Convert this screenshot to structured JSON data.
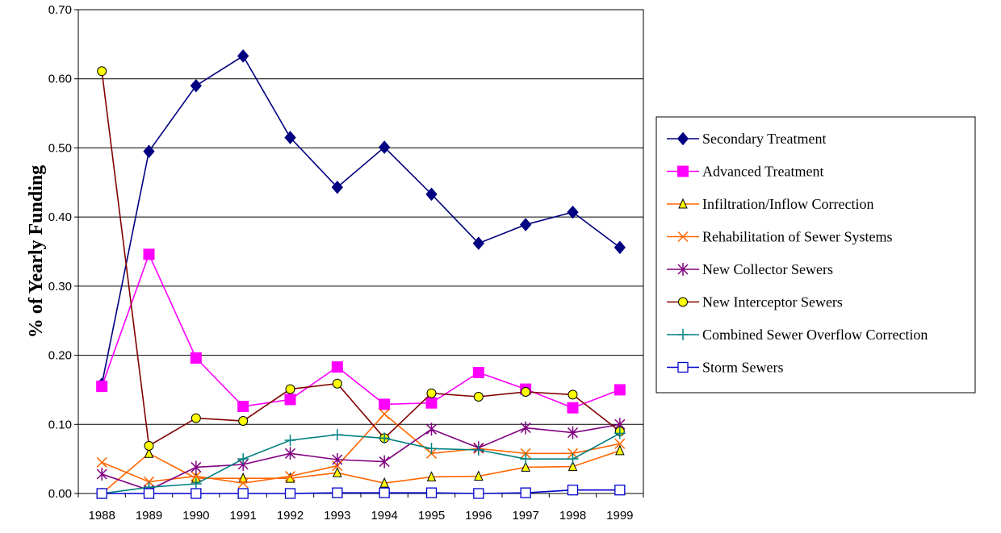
{
  "chart_data": {
    "type": "line",
    "title": "",
    "xlabel": "",
    "ylabel": "% of Yearly Funding",
    "ylim": [
      0,
      0.7
    ],
    "y_ticks": [
      "0.00",
      "0.10",
      "0.20",
      "0.30",
      "0.40",
      "0.50",
      "0.60",
      "0.70"
    ],
    "grid": "horizontal",
    "legend_position": "right",
    "categories": [
      "1988",
      "1989",
      "1990",
      "1991",
      "1992",
      "1993",
      "1994",
      "1995",
      "1996",
      "1997",
      "1998",
      "1999"
    ],
    "series": [
      {
        "name": "Secondary Treatment",
        "color": "#000080",
        "marker": "diamond",
        "marker_fill": "#000080",
        "values": [
          0.158,
          0.495,
          0.59,
          0.633,
          0.515,
          0.443,
          0.501,
          0.433,
          0.362,
          0.389,
          0.407,
          0.356
        ]
      },
      {
        "name": "Advanced Treatment",
        "color": "#FF00FF",
        "marker": "square",
        "marker_fill": "#FF00FF",
        "values": [
          0.155,
          0.346,
          0.196,
          0.126,
          0.136,
          0.183,
          0.129,
          0.131,
          0.175,
          0.151,
          0.124,
          0.15
        ]
      },
      {
        "name": "Infiltration/Inflow Correction",
        "color": "#FF6600",
        "marker": "triangle",
        "marker_fill": "#FFFF00",
        "values": [
          0.0,
          0.058,
          0.022,
          0.022,
          0.022,
          0.03,
          0.015,
          0.024,
          0.025,
          0.038,
          0.039,
          0.062
        ]
      },
      {
        "name": "Rehabilitation of Sewer Systems",
        "color": "#FF6600",
        "marker": "x",
        "marker_fill": "none",
        "values": [
          0.045,
          0.017,
          0.025,
          0.015,
          0.025,
          0.04,
          0.115,
          0.058,
          0.065,
          0.058,
          0.058,
          0.072
        ]
      },
      {
        "name": "New Collector Sewers",
        "color": "#800080",
        "marker": "asterisk",
        "marker_fill": "none",
        "values": [
          0.028,
          0.005,
          0.038,
          0.042,
          0.058,
          0.049,
          0.046,
          0.093,
          0.066,
          0.095,
          0.088,
          0.1
        ]
      },
      {
        "name": "New Interceptor Sewers",
        "color": "#800000",
        "marker": "circle",
        "marker_fill": "#FFFF00",
        "values": [
          0.611,
          0.069,
          0.109,
          0.105,
          0.151,
          0.159,
          0.08,
          0.145,
          0.14,
          0.147,
          0.143,
          0.09
        ]
      },
      {
        "name": "Combined Sewer Overflow Correction",
        "color": "#008080",
        "marker": "plus",
        "marker_fill": "none",
        "values": [
          0.0,
          0.009,
          0.014,
          0.05,
          0.077,
          0.085,
          0.08,
          0.065,
          0.063,
          0.05,
          0.05,
          0.087
        ]
      },
      {
        "name": "Storm Sewers",
        "color": "#0000CC",
        "marker": "square-open",
        "marker_fill": "#FFFFFF",
        "values": [
          0.0,
          0.0,
          0.0,
          0.0,
          0.0,
          0.001,
          0.001,
          0.001,
          0.0,
          0.001,
          0.005,
          0.005
        ]
      }
    ]
  }
}
